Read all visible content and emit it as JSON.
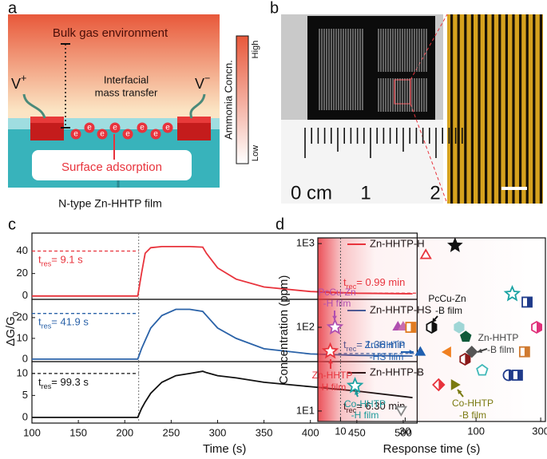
{
  "panel_a": {
    "label": "a",
    "bulk": "Bulk gas environment",
    "v_plus": [
      "V",
      "+"
    ],
    "v_minus": [
      "V",
      "−"
    ],
    "transfer": [
      "Interfacial",
      "mass transfer"
    ],
    "colorbar": {
      "title": "Ammonia Concn.",
      "high": "High",
      "low": "Low"
    },
    "electron": "e",
    "adsorption": "Surface adsorption",
    "caption": "N-type Zn-HHTP film"
  },
  "panel_b": {
    "label": "b",
    "ruler": [
      "0 cm",
      "1",
      "2"
    ]
  },
  "panel_c": {
    "label": "c"
  },
  "panel_d": {
    "label": "d"
  },
  "chart_data": [
    {
      "type": "line",
      "x": [
        100,
        150,
        200,
        214,
        218,
        222,
        228,
        240,
        255,
        270,
        284,
        288,
        300,
        320,
        350,
        400,
        450,
        510
      ],
      "series": [
        {
          "name": "Zn-HHTP-H",
          "color": "#e8333c",
          "values": [
            0,
            0,
            0,
            0,
            20,
            38,
            43,
            44,
            44,
            44,
            43.5,
            38,
            25,
            15,
            8,
            4,
            2.5,
            2
          ]
        }
      ],
      "xlim": [
        100,
        515
      ],
      "ylim": [
        -3,
        56
      ],
      "yticks": [
        0,
        20,
        40
      ],
      "hlines": [
        {
          "y": 40,
          "x": [
            100,
            215
          ]
        },
        {
          "y": 2.5,
          "x": [
            420,
            515
          ]
        }
      ],
      "vline": 215,
      "annotations": [
        {
          "symbol": "t",
          "sub": "res",
          "text": "= 9.1 s"
        },
        {
          "symbol": "t",
          "sub": "rec",
          "text": "= 0.99 min"
        }
      ]
    },
    {
      "type": "line",
      "x": [
        100,
        150,
        200,
        214,
        218,
        222,
        228,
        240,
        255,
        270,
        284,
        288,
        300,
        320,
        350,
        400,
        450,
        510
      ],
      "series": [
        {
          "name": "Zn-HHTP-HS",
          "color": "#2a62a8",
          "values": [
            0,
            0,
            0,
            0,
            5,
            9,
            15,
            21,
            24,
            24,
            23,
            21,
            15,
            10,
            5,
            2.5,
            1.8,
            1.5
          ]
        }
      ],
      "xlim": [
        100,
        515
      ],
      "ylim": [
        -1.2,
        28.8
      ],
      "yticks": [
        0,
        10,
        20
      ],
      "ylabel": {
        "text": "ΔG/G",
        "sub": "0"
      },
      "hlines": [
        {
          "y": 22,
          "x": [
            100,
            215
          ]
        },
        {
          "y": 2.7,
          "x": [
            430,
            515
          ]
        }
      ],
      "vline": 215,
      "annotations": [
        {
          "symbol": "t",
          "sub": "res",
          "text": "= 41.9 s"
        },
        {
          "symbol": "t",
          "sub": "rec",
          "text": "= 1.36 min"
        }
      ]
    },
    {
      "type": "line",
      "x": [
        100,
        150,
        200,
        214,
        218,
        222,
        228,
        240,
        255,
        270,
        284,
        288,
        300,
        320,
        350,
        400,
        450,
        510
      ],
      "series": [
        {
          "name": "Zn-HHTP-B",
          "color": "#111111",
          "values": [
            0,
            0,
            0,
            0,
            2,
            3.5,
            5.5,
            8,
            9.5,
            10,
            10.5,
            10.2,
            9.5,
            9,
            8,
            7,
            6,
            4.5
          ]
        }
      ],
      "xlim": [
        100,
        515
      ],
      "ylim": [
        -1.3,
        12.7
      ],
      "yticks": [
        0,
        5,
        10
      ],
      "xticks": [
        100,
        150,
        200,
        250,
        300,
        350,
        400,
        450,
        500
      ],
      "xlabel": "Time (s)",
      "hlines": [
        {
          "y": 10,
          "x": [
            100,
            215
          ]
        }
      ],
      "vline": 215,
      "annotations": [
        {
          "symbol": "t",
          "sub": "res",
          "text": "= 99.3 s"
        },
        {
          "symbol": "t",
          "sub": "rec",
          "text": "= 6.30 min"
        }
      ]
    },
    {
      "type": "scatter",
      "xscale": "log",
      "yscale": "log",
      "xlabel": "Response time (s)",
      "ylabel": "Concentration (ppm)",
      "xlim": [
        6.8,
        325
      ],
      "ylim": [
        7.5,
        1170
      ],
      "xticks": [
        10,
        30,
        100,
        300
      ],
      "yticks": [
        {
          "value": 10,
          "label": "1E1"
        },
        {
          "value": 100,
          "label": "1E2"
        },
        {
          "value": 1000,
          "label": "1E3"
        }
      ],
      "vline": 10,
      "x": [
        70,
        42.6,
        185,
        238,
        280,
        26.5,
        29,
        33,
        47,
        75,
        84,
        83,
        62,
        93,
        228,
        38.8,
        111,
        174,
        202,
        53,
        69,
        28,
        12.8,
        9.1,
        8.4
      ],
      "values": [
        950,
        720,
        250,
        200,
        100,
        100,
        100,
        100,
        100,
        100,
        77,
        41.6,
        50.7,
        51,
        51,
        50,
        30.6,
        26.8,
        26.8,
        20.6,
        20.6,
        10.4,
        20,
        100,
        51.8
      ],
      "markers": [
        "star",
        "triangle",
        "star",
        "square",
        "hexagon",
        "triangle",
        "triangle",
        "square",
        "hexagon",
        "hexagon",
        "pentagon",
        "hexagon",
        "tri-left",
        "diamond",
        "square",
        "triangle",
        "pentagon",
        "circle",
        "square",
        "diamond",
        "tri-right",
        "tri-down",
        "star",
        "star",
        "star"
      ],
      "colors": [
        "#111111",
        "#e8333c",
        "#1aa3a3",
        "#1f3a8a",
        "#e0307a",
        "#b04fb0",
        "#c86bb0",
        "#e07b20",
        "#111111",
        "#9fd6d6",
        "#0f5a3a",
        "#8b1a1a",
        "#f08020",
        "#555555",
        "#d07a30",
        "#1f5fb0",
        "#40b8b8",
        "#1f3a8a",
        "#1f3a8a",
        "#e8333c",
        "#7a7a10",
        "#888888",
        "#1aa3a3",
        "#b04fb0",
        "#e8333c"
      ],
      "fills": [
        "solid",
        "outline",
        "outline",
        "half",
        "half",
        "solid",
        "solid",
        "half",
        "half",
        "solid",
        "solid",
        "half",
        "solid",
        "solid",
        "half",
        "solid",
        "outline",
        "half",
        "half",
        "half",
        "solid",
        "outline",
        "outline",
        "outline",
        "outline"
      ],
      "annotations": [
        {
          "lines": [
            "PcCu-Zn",
            "-H film"
          ],
          "color": "#b04fb0"
        },
        {
          "lines": [
            "PcCu-Zn",
            "-B film"
          ],
          "color": "#111111"
        },
        {
          "lines": [
            "Zn-HHTP",
            "-B film"
          ],
          "color": "#444444"
        },
        {
          "lines": [
            "Zn-HHTP",
            "-HS film"
          ],
          "color": "#1f5fb0"
        },
        {
          "lines": [
            "Zn-HHTP",
            "-H film"
          ],
          "color": "#e8333c"
        },
        {
          "lines": [
            "Co-HHTP",
            "-H film"
          ],
          "color": "#1a9a9a"
        },
        {
          "lines": [
            "Co-HHTP",
            "-B film"
          ],
          "color": "#7a7a10"
        }
      ]
    }
  ]
}
